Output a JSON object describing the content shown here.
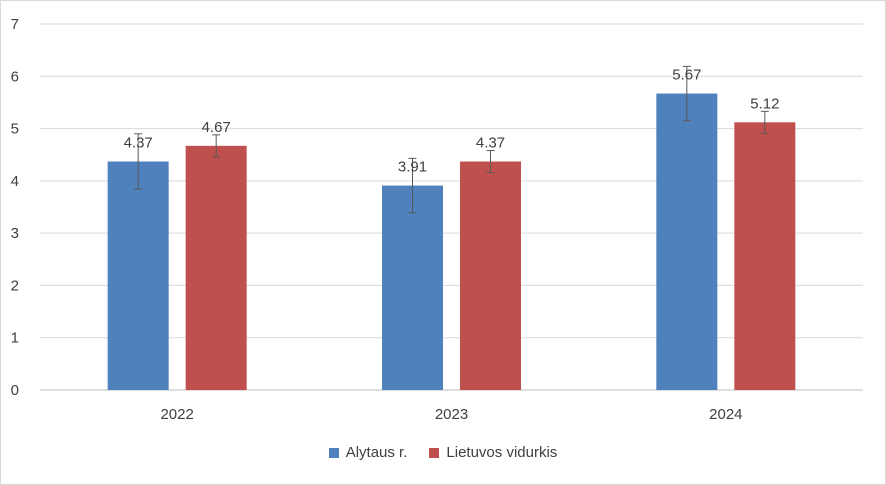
{
  "chart_data": {
    "type": "bar",
    "categories": [
      "2022",
      "2023",
      "2024"
    ],
    "series": [
      {
        "name": "Alytaus r.",
        "color": "#4f81bd",
        "values": [
          4.37,
          3.91,
          5.67
        ],
        "labels": [
          "4.37",
          "3.91",
          "5.67"
        ],
        "error": [
          0.53,
          0.52,
          0.52
        ]
      },
      {
        "name": "Lietuvos vidurkis",
        "color": "#c0504d",
        "values": [
          4.67,
          4.37,
          5.12
        ],
        "labels": [
          "4.67",
          "4.37",
          "5.12"
        ],
        "error": [
          0.21,
          0.21,
          0.21
        ]
      }
    ],
    "ylim": [
      0,
      7
    ],
    "yticks": [
      0,
      1,
      2,
      3,
      4,
      5,
      6,
      7
    ],
    "grid": true,
    "legend_position": "bottom",
    "title": "",
    "xlabel": "",
    "ylabel": ""
  }
}
